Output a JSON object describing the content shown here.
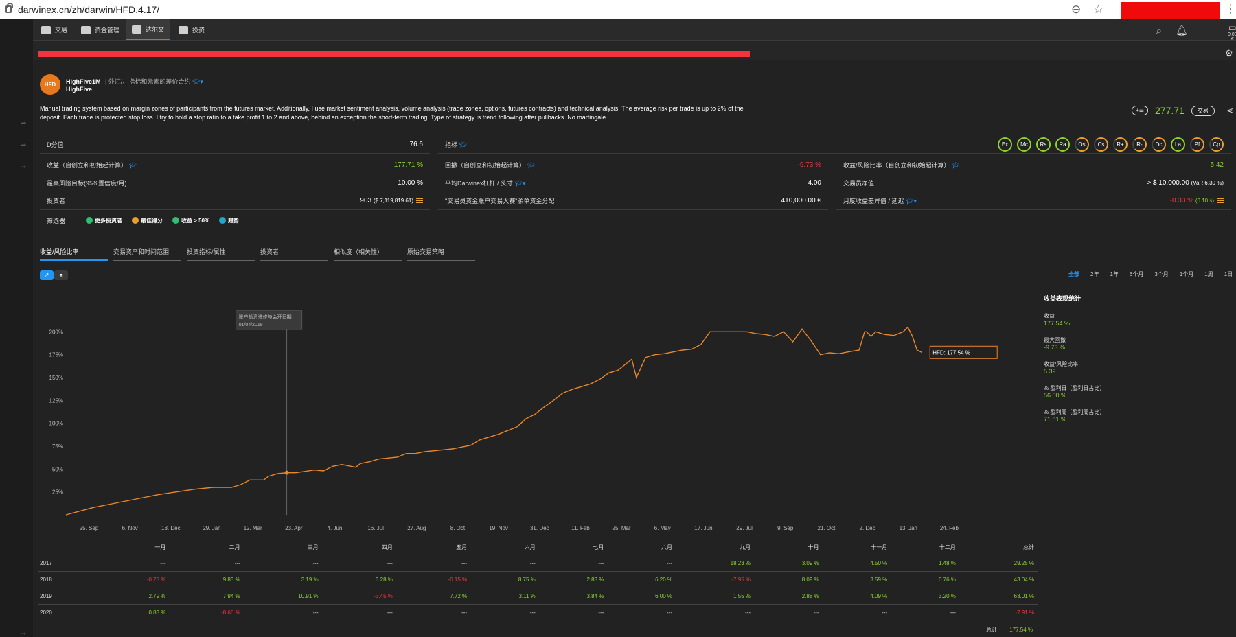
{
  "browser": {
    "url": "darwinex.cn/zh/darwin/HFD.4.17/"
  },
  "nav": {
    "items": [
      {
        "label": "交易",
        "icon": "monitor-icon"
      },
      {
        "label": "资金管理",
        "icon": "people-icon"
      },
      {
        "label": "达尔文",
        "icon": "paw-icon"
      },
      {
        "label": "投资",
        "icon": "briefcase-icon"
      }
    ],
    "wallet_value": "0.00 €"
  },
  "header": {
    "logo_text": "HFD",
    "name": "HighFive1M",
    "subtitle": "| 外汇/、指标和元素的差价合约",
    "trader": "HighFive",
    "description": "Manual trading system based on margin zones of participants from the futures market. Additionally, I use market sentiment analysis, volume analysis (trade zones, options, futures contracts) and technical analysis. The average risk per trade is up to 2% of the deposit. Each trade is protected stop loss. I try to hold a stop ratio to a take profit 1 to 2 and above, behind an exception the short-term trading. Type of strategy is trend following after pullbacks. No martingale.",
    "watch_label": "+☰",
    "price": "277.71",
    "trade_button": "交易"
  },
  "metrics": {
    "d_score_label": "D分值",
    "d_score": "76.6",
    "indicators_label": "指标",
    "badges": [
      {
        "label": "Ex",
        "color": "green"
      },
      {
        "label": "Mc",
        "color": "green"
      },
      {
        "label": "Rs",
        "color": "green"
      },
      {
        "label": "Ra",
        "color": "green"
      },
      {
        "label": "Os",
        "color": "orange"
      },
      {
        "label": "Cs",
        "color": "orange"
      },
      {
        "label": "R+",
        "color": "orange"
      },
      {
        "label": "R-",
        "color": "orange"
      },
      {
        "label": "Dc",
        "color": "orange"
      },
      {
        "label": "La",
        "color": "green"
      },
      {
        "label": "Pf",
        "color": "orange"
      },
      {
        "label": "Cp",
        "color": "orange"
      }
    ],
    "return_label": "收益（自创立和初始起计算）",
    "return_value": "177.71 %",
    "drawdown_label": "回撤（自创立和初始起计算）",
    "drawdown_value": "-9.73 %",
    "ratio_label": "收益/风险比率（自创立和初始起计算）",
    "ratio_value": "5.42",
    "maxrisk_label": "最高风险目标(95%置信度/月)",
    "maxrisk_value": "10.00 %",
    "avgpos_label": "平均Darwinex杠杆 / 头寸",
    "avgpos_value": "4.00",
    "equity_label": "交易员净值",
    "equity_value": "> $ 10,000.00",
    "equity_var": "(VaR 6.30 %)",
    "investors_label": "投资者",
    "investors_value": "903",
    "investors_amount": "($ 7,119,819.61)",
    "alloc_label": "\"交易员资金账户交易大赛\"頒单资金分配",
    "alloc_value": "410,000.00 €",
    "monthly_label": "月度收益差异值 / 延迟",
    "monthly_value": "-0.33 %",
    "monthly_delay": "(0.10 s)",
    "filters_label": "筛选器",
    "filters": [
      {
        "label": "更多投资者",
        "color": "#2fbf71"
      },
      {
        "label": "最佳得分",
        "color": "#e8a02c"
      },
      {
        "label": "收益 > 50%",
        "color": "#2fbf71"
      },
      {
        "label": "趋势",
        "color": "#22a8c8"
      }
    ]
  },
  "tabs": [
    "收益/风险比率",
    "交易资产和时间范围",
    "投资指标/属性",
    "投资者",
    "相似度（相关性）",
    "原始交易策略"
  ],
  "toggle": [
    "↗",
    "⧈"
  ],
  "ranges": [
    "全部",
    "2年",
    "1年",
    "6个月",
    "3个月",
    "1个月",
    "1周",
    "1日"
  ],
  "stats": {
    "title": "收益表现统计",
    "items": [
      {
        "label": "收益",
        "value": "177.54 %"
      },
      {
        "label": "最大回撤",
        "value": "-9.73 %"
      },
      {
        "label": "收益/风险比率",
        "value": "5.39"
      },
      {
        "label": "% 盈利日（盈利日占比）",
        "value": "56.00 %"
      },
      {
        "label": "% 盈利周（盈利周占比）",
        "value": "71.81 %"
      }
    ]
  },
  "chart_data": {
    "type": "line",
    "ylim": [
      0,
      200
    ],
    "yticks": [
      "25%",
      "50%",
      "75%",
      "100%",
      "125%",
      "150%",
      "175%",
      "200%"
    ],
    "xticks": [
      "25. Sep",
      "6. Nov",
      "18. Dec",
      "29. Jan",
      "12. Mar",
      "23. Apr",
      "4. Jun",
      "16. Jul",
      "27. Aug",
      "8. Oct",
      "19. Nov",
      "31. Dec",
      "11. Feb",
      "25. Mar",
      "6. May",
      "17. Jun",
      "29. Jul",
      "9. Sep",
      "21. Oct",
      "2. Dec",
      "13. Jan",
      "24. Feb"
    ],
    "series": [
      {
        "name": "HFD",
        "x": [
          0,
          3,
          5,
          8,
          10,
          12,
          14,
          16,
          18,
          19,
          20,
          21.5,
          22,
          23,
          24,
          25,
          27,
          28,
          29,
          30,
          31.5,
          32,
          33,
          34,
          35,
          36,
          37,
          38,
          39,
          40,
          41,
          42,
          43,
          44,
          45,
          46,
          47,
          48,
          49,
          50,
          51,
          52,
          53,
          54,
          55,
          56,
          57,
          58,
          59,
          60,
          61.5,
          62,
          63,
          64,
          65,
          66,
          67,
          68,
          69,
          70,
          71,
          72,
          73,
          74,
          75,
          76,
          77,
          78,
          79,
          80,
          81,
          82,
          83,
          84,
          85,
          86.2,
          86.8,
          87,
          87.5,
          88,
          89,
          90,
          91,
          91.5,
          92,
          92.5,
          93
        ],
        "y": [
          0,
          8,
          12,
          18,
          22,
          25,
          28,
          30,
          30,
          33,
          38,
          38,
          42,
          45,
          46,
          46,
          49,
          48,
          53,
          55,
          52,
          56,
          58,
          61,
          62,
          63,
          67,
          67,
          69,
          70,
          71,
          72,
          74,
          76,
          82,
          85,
          88,
          92,
          96,
          105,
          110,
          118,
          125,
          133,
          137,
          140,
          143,
          148,
          155,
          158,
          170,
          150,
          172,
          175,
          176,
          178,
          180,
          181,
          186,
          200,
          200,
          200,
          200,
          200,
          198,
          197,
          195,
          200,
          189,
          203,
          190,
          175,
          177,
          176,
          178,
          180,
          200,
          200,
          195,
          200,
          197,
          196,
          200,
          205,
          195,
          180,
          177.54
        ]
      }
    ],
    "marker_label": "账户投资进修与会开日期:",
    "marker_date": "01/04/2018",
    "end_label": "HFD: 177.54 %"
  },
  "monthly": {
    "headers": [
      "",
      "一月",
      "二月",
      "三月",
      "四月",
      "五月",
      "六月",
      "七月",
      "八月",
      "九月",
      "十月",
      "十一月",
      "十二月",
      "总计"
    ],
    "rows": [
      [
        "2017",
        "---",
        "---",
        "---",
        "---",
        "---",
        "---",
        "---",
        "---",
        "18.23 %",
        "3.09 %",
        "4.50 %",
        "1.48 %",
        "29.25 %"
      ],
      [
        "2018",
        "-0.78 %",
        "9.83 %",
        "3.19 %",
        "3.28 %",
        "-0.15 %",
        "8.75 %",
        "2.83 %",
        "6.20 %",
        "-7.95 %",
        "8.09 %",
        "3.59 %",
        "0.76 %",
        "43.04 %"
      ],
      [
        "2019",
        "2.79 %",
        "7.94 %",
        "10.91 %",
        "-3.45 %",
        "7.72 %",
        "3.11 %",
        "3.84 %",
        "6.00 %",
        "1.55 %",
        "2.88 %",
        "4.09 %",
        "3.20 %",
        "63.01 %"
      ],
      [
        "2020",
        "0.83 %",
        "-8.66 %",
        "---",
        "---",
        "---",
        "---",
        "---",
        "---",
        "---",
        "---",
        "---",
        "---",
        "-7.91 %"
      ]
    ],
    "total_label": "总计",
    "total_value": "177.54 %"
  }
}
